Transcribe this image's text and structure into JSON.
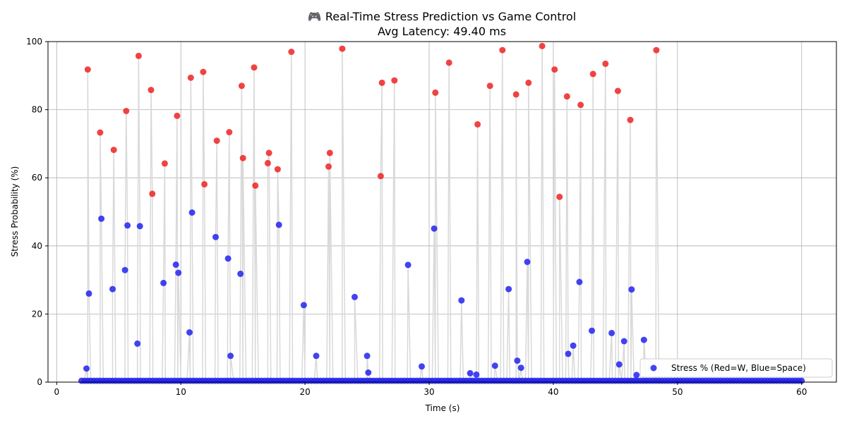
{
  "chart_data": {
    "type": "scatter",
    "title": "🎮 Real-Time Stress Prediction vs Game Control",
    "subtitle": "Avg Latency: 49.40 ms",
    "xlabel": "Time (s)",
    "ylabel": "Stress Probability (%)",
    "xlim": [
      -0.7,
      62.8
    ],
    "ylim": [
      0,
      100
    ],
    "xticks": [
      0,
      10,
      20,
      30,
      40,
      50,
      60
    ],
    "yticks": [
      0,
      20,
      40,
      60,
      80,
      100
    ],
    "grid": true,
    "legend": {
      "label": "Stress % (Red=W, Blue=Space)",
      "placement": "lower-right"
    },
    "colors": {
      "high": "#ee2222",
      "low": "#2222ee",
      "line": "#d9d9d9",
      "grid": "#b0b0b0"
    },
    "spikes": [
      {
        "t": 2.4,
        "v": 4
      },
      {
        "t": 2.5,
        "v": 91.8
      },
      {
        "t": 2.6,
        "v": 26
      },
      {
        "t": 3.5,
        "v": 73.3
      },
      {
        "t": 3.6,
        "v": 48
      },
      {
        "t": 4.5,
        "v": 27.3
      },
      {
        "t": 4.6,
        "v": 68.2
      },
      {
        "t": 5.5,
        "v": 32.9
      },
      {
        "t": 5.6,
        "v": 79.6
      },
      {
        "t": 5.7,
        "v": 46
      },
      {
        "t": 6.5,
        "v": 11.3
      },
      {
        "t": 6.6,
        "v": 95.8
      },
      {
        "t": 6.7,
        "v": 45.8
      },
      {
        "t": 7.6,
        "v": 85.8
      },
      {
        "t": 7.7,
        "v": 55.3
      },
      {
        "t": 8.6,
        "v": 29.1
      },
      {
        "t": 8.7,
        "v": 64.2
      },
      {
        "t": 9.6,
        "v": 34.5
      },
      {
        "t": 9.7,
        "v": 78.2
      },
      {
        "t": 9.8,
        "v": 32.1
      },
      {
        "t": 10.7,
        "v": 14.6
      },
      {
        "t": 10.8,
        "v": 89.4
      },
      {
        "t": 10.9,
        "v": 49.8
      },
      {
        "t": 11.8,
        "v": 91.1
      },
      {
        "t": 11.9,
        "v": 58.1
      },
      {
        "t": 12.8,
        "v": 42.6
      },
      {
        "t": 12.9,
        "v": 70.9
      },
      {
        "t": 13.8,
        "v": 36.3
      },
      {
        "t": 13.9,
        "v": 73.4
      },
      {
        "t": 14.0,
        "v": 7.7
      },
      {
        "t": 14.8,
        "v": 31.8
      },
      {
        "t": 14.9,
        "v": 87
      },
      {
        "t": 15.0,
        "v": 65.8
      },
      {
        "t": 15.9,
        "v": 92.4
      },
      {
        "t": 16.0,
        "v": 57.7
      },
      {
        "t": 17.0,
        "v": 64.3
      },
      {
        "t": 17.1,
        "v": 67.3
      },
      {
        "t": 17.8,
        "v": 62.5
      },
      {
        "t": 17.9,
        "v": 46.2
      },
      {
        "t": 18.9,
        "v": 97
      },
      {
        "t": 19.9,
        "v": 22.6
      },
      {
        "t": 20.9,
        "v": 7.7
      },
      {
        "t": 21.9,
        "v": 63.3
      },
      {
        "t": 22.0,
        "v": 67.3
      },
      {
        "t": 23.0,
        "v": 97.9
      },
      {
        "t": 24.0,
        "v": 25
      },
      {
        "t": 25.0,
        "v": 7.7
      },
      {
        "t": 25.1,
        "v": 2.8
      },
      {
        "t": 26.1,
        "v": 60.5
      },
      {
        "t": 26.2,
        "v": 87.9
      },
      {
        "t": 27.2,
        "v": 88.6
      },
      {
        "t": 28.3,
        "v": 34.4
      },
      {
        "t": 29.4,
        "v": 4.6
      },
      {
        "t": 30.4,
        "v": 45.1
      },
      {
        "t": 30.5,
        "v": 85
      },
      {
        "t": 31.6,
        "v": 93.8
      },
      {
        "t": 32.6,
        "v": 24
      },
      {
        "t": 33.3,
        "v": 2.6
      },
      {
        "t": 33.8,
        "v": 2.2
      },
      {
        "t": 33.9,
        "v": 75.7
      },
      {
        "t": 34.9,
        "v": 87
      },
      {
        "t": 35.3,
        "v": 4.8
      },
      {
        "t": 35.9,
        "v": 97.5
      },
      {
        "t": 36.4,
        "v": 27.3
      },
      {
        "t": 37.0,
        "v": 84.5
      },
      {
        "t": 37.1,
        "v": 6.3
      },
      {
        "t": 37.4,
        "v": 4.2
      },
      {
        "t": 37.9,
        "v": 35.3
      },
      {
        "t": 38.0,
        "v": 87.9
      },
      {
        "t": 39.1,
        "v": 98.7
      },
      {
        "t": 40.1,
        "v": 91.8
      },
      {
        "t": 40.5,
        "v": 54.4
      },
      {
        "t": 41.1,
        "v": 83.9
      },
      {
        "t": 41.2,
        "v": 8.3
      },
      {
        "t": 41.6,
        "v": 10.7
      },
      {
        "t": 42.1,
        "v": 29.4
      },
      {
        "t": 42.2,
        "v": 81.4
      },
      {
        "t": 43.1,
        "v": 15.1
      },
      {
        "t": 43.2,
        "v": 90.5
      },
      {
        "t": 44.2,
        "v": 93.5
      },
      {
        "t": 44.7,
        "v": 14.4
      },
      {
        "t": 45.2,
        "v": 85.5
      },
      {
        "t": 45.3,
        "v": 5.2
      },
      {
        "t": 45.7,
        "v": 12
      },
      {
        "t": 46.2,
        "v": 77
      },
      {
        "t": 46.3,
        "v": 27.2
      },
      {
        "t": 46.7,
        "v": 2.1
      },
      {
        "t": 47.3,
        "v": 12.4
      },
      {
        "t": 48.3,
        "v": 97.5
      }
    ],
    "baseline": {
      "start": 2.0,
      "end": 60.0,
      "step": 0.25,
      "value": 0.4
    }
  }
}
